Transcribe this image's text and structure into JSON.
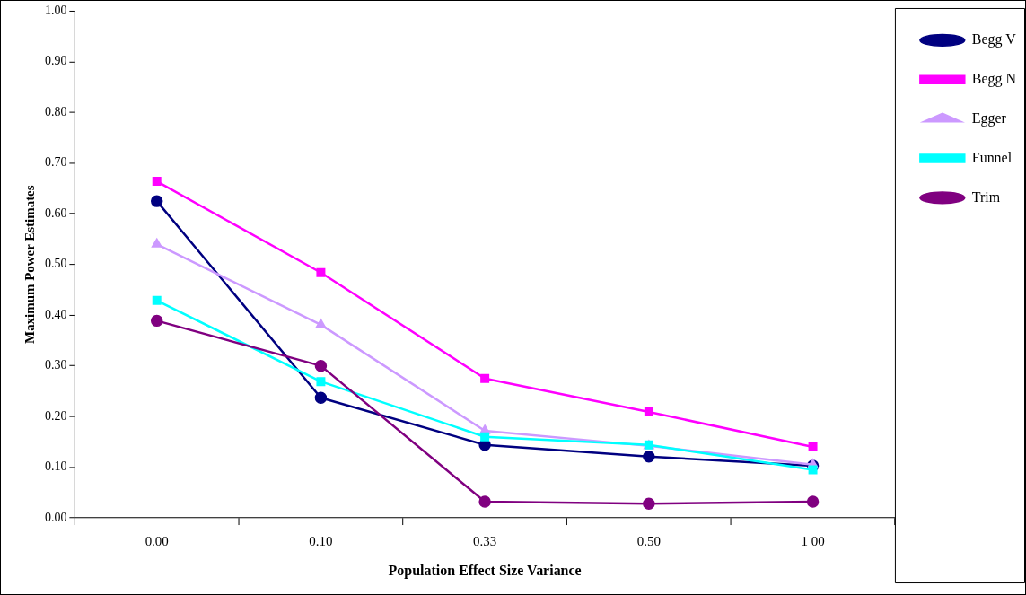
{
  "chart_data": {
    "type": "line",
    "xlabel": "Population Effect Size Variance",
    "ylabel": "Maximum Power Estimates",
    "categories": [
      "0.00",
      "0.10",
      "0.33",
      "0.50",
      "1 00"
    ],
    "series": [
      {
        "name": "Begg V",
        "color": "#000080",
        "marker": "circle",
        "values": [
          0.625,
          0.237,
          0.144,
          0.121,
          0.103
        ]
      },
      {
        "name": "Begg N",
        "color": "#ff00ff",
        "marker": "square",
        "values": [
          0.664,
          0.484,
          0.275,
          0.209,
          0.14
        ]
      },
      {
        "name": "Egger",
        "color": "#cc99ff",
        "marker": "triangle",
        "values": [
          0.54,
          0.381,
          0.172,
          0.142,
          0.105
        ]
      },
      {
        "name": "Funnel",
        "color": "#00ffff",
        "marker": "square",
        "values": [
          0.429,
          0.269,
          0.16,
          0.144,
          0.095
        ]
      },
      {
        "name": "Trim",
        "color": "#800080",
        "marker": "circle",
        "values": [
          0.389,
          0.3,
          0.032,
          0.028,
          0.032
        ]
      }
    ],
    "ylim": [
      0,
      1
    ],
    "yticks": [
      {
        "value": 0,
        "label": "0.00"
      },
      {
        "value": 0.1,
        "label": "0.10"
      },
      {
        "value": 0.2,
        "label": "0.20"
      },
      {
        "value": 0.3,
        "label": "0.30"
      },
      {
        "value": 0.4,
        "label": "0.40"
      },
      {
        "value": 0.5,
        "label": "0.50"
      },
      {
        "value": 0.6,
        "label": "0.60"
      },
      {
        "value": 0.7,
        "label": "0.70"
      },
      {
        "value": 0.8,
        "label": "0.80"
      },
      {
        "value": 0.9,
        "label": "0.90"
      },
      {
        "value": 1,
        "label": "1.00"
      }
    ],
    "grid": false,
    "legend": "top right"
  }
}
